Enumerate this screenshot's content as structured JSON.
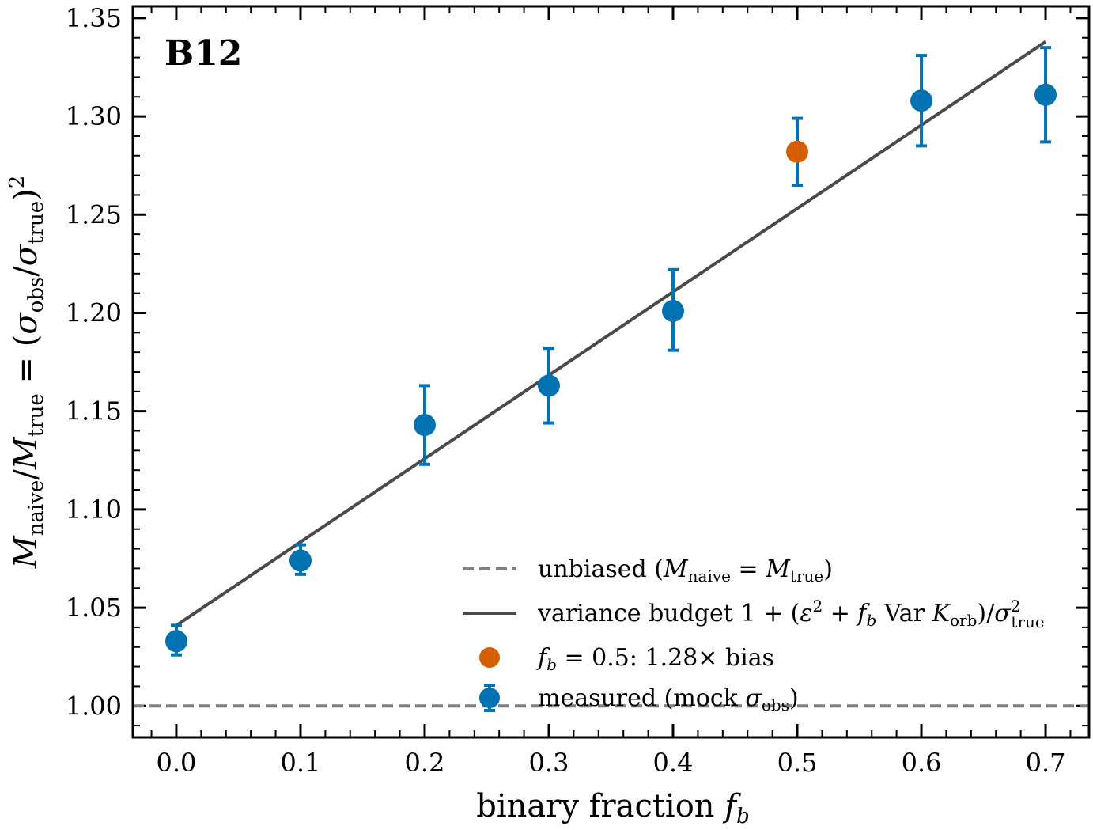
{
  "chart_data": {
    "type": "scatter",
    "panel_label": "B12",
    "xlabel_text": "binary fraction ",
    "xlabel_math": "f",
    "xlabel_sub": "b",
    "ylabel": {
      "m1": "M",
      "s1": "naive",
      "slash": "/",
      "m2": "M",
      "s2": "true",
      "eq": " = (",
      "sig1": "σ",
      "s3": "obs",
      "slash2": "/",
      "sig2": "σ",
      "s4": "true",
      "close": ")",
      "sup": "2"
    },
    "xlim": [
      -0.035,
      0.735
    ],
    "ylim": [
      0.984,
      1.356
    ],
    "xticks": [
      0.0,
      0.1,
      0.2,
      0.3,
      0.4,
      0.5,
      0.6,
      0.7
    ],
    "xtick_labels": [
      "0.0",
      "0.1",
      "0.2",
      "0.3",
      "0.4",
      "0.5",
      "0.6",
      "0.7"
    ],
    "xminor_step": 0.02,
    "yticks": [
      1.0,
      1.05,
      1.1,
      1.15,
      1.2,
      1.25,
      1.3,
      1.35
    ],
    "ytick_labels": [
      "1.00",
      "1.05",
      "1.10",
      "1.15",
      "1.20",
      "1.25",
      "1.30",
      "1.35"
    ],
    "yminor_step": 0.01,
    "series": [
      {
        "name": "measured (mock σobs)",
        "kind": "errorbar",
        "color": "#0072b2",
        "x": [
          0.0,
          0.1,
          0.2,
          0.3,
          0.4,
          0.6,
          0.7
        ],
        "y": [
          1.033,
          1.074,
          1.143,
          1.163,
          1.201,
          1.308,
          1.311
        ],
        "yerr_low": [
          0.007,
          0.007,
          0.02,
          0.019,
          0.02,
          0.023,
          0.024
        ],
        "yerr_high": [
          0.008,
          0.008,
          0.02,
          0.019,
          0.021,
          0.023,
          0.024
        ]
      },
      {
        "name": "fb = 0.5: 1.28× bias",
        "kind": "errorbar-highlight",
        "color": "#d55e00",
        "errcolor": "#0072b2",
        "x": [
          0.5
        ],
        "y": [
          1.282
        ],
        "yerr_low": [
          0.017
        ],
        "yerr_high": [
          0.017
        ]
      },
      {
        "name": "variance budget",
        "kind": "line",
        "color": "#4a4a4a",
        "x": [
          0.0,
          0.7
        ],
        "y": [
          1.041,
          1.338
        ]
      },
      {
        "name": "unbiased",
        "kind": "hline",
        "color": "#7f7f7f",
        "y": 1.0
      }
    ],
    "legend": {
      "position": "lower-right",
      "unbiased": {
        "text": "unbiased (",
        "m1": "M",
        "s1": "naive",
        "eq": " = ",
        "m2": "M",
        "s2": "true",
        "close": ")"
      },
      "budget": {
        "text": "variance budget 1 + (",
        "eps": "ε",
        "sup": "2",
        "plus": " + ",
        "f": "f",
        "fs": "b",
        "var": " Var ",
        "k": "K",
        "ks": "orb",
        "slash": ")/",
        "sig": "σ",
        "sigsup": "2",
        "sigsub": "true"
      },
      "highlight": {
        "f": "f",
        "fs": "b",
        "rest": " = 0.5: 1.28× bias"
      },
      "measured": {
        "text": "measured (mock ",
        "sig": "σ",
        "sub": "obs",
        "close": ")"
      }
    }
  }
}
